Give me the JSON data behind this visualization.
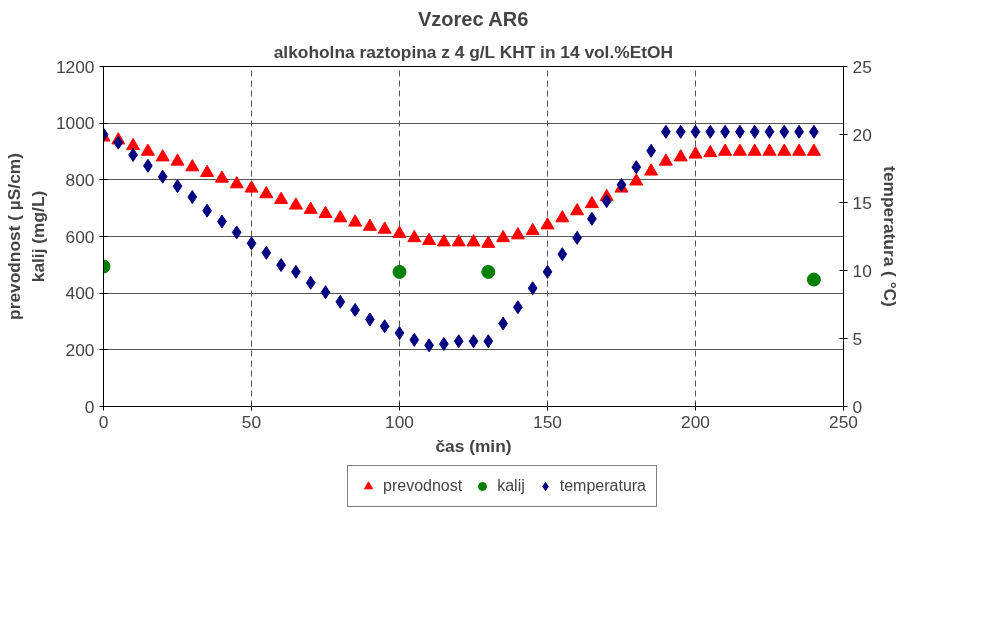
{
  "chart_data": {
    "type": "scatter",
    "title": "Vzorec AR6",
    "subtitle": "alkoholna raztopina z 4 g/L KHT in 14 vol.%EtOH",
    "xlabel": "čas (min)",
    "ylabel": "prevodnost ( µS/cm)\nkalij (mg/L)",
    "y2label": "temperatura ( °C)",
    "xlim": [
      0,
      250
    ],
    "xticks": [
      0,
      50,
      100,
      150,
      200,
      250
    ],
    "ylim": [
      0,
      1200
    ],
    "yticks": [
      0,
      200,
      400,
      600,
      800,
      1000,
      1200
    ],
    "y2lim": [
      0,
      25
    ],
    "y2ticks": [
      0,
      5,
      10,
      15,
      20,
      25
    ],
    "grid": true,
    "legend": "bottom",
    "series": [
      {
        "name": "prevodnost",
        "color": "#ff0000",
        "marker": "triangle",
        "x": [
          0,
          5,
          10,
          15,
          20,
          25,
          30,
          35,
          40,
          45,
          50,
          55,
          60,
          65,
          70,
          75,
          80,
          85,
          90,
          95,
          100,
          105,
          110,
          115,
          120,
          125,
          130,
          135,
          140,
          145,
          150,
          155,
          160,
          165,
          170,
          175,
          180,
          185,
          190,
          195,
          200,
          205,
          210,
          215,
          220,
          225,
          230,
          235,
          240
        ],
        "values": [
          950,
          940,
          920,
          900,
          880,
          865,
          845,
          825,
          805,
          785,
          770,
          750,
          730,
          710,
          695,
          680,
          665,
          650,
          635,
          625,
          610,
          595,
          585,
          580,
          580,
          580,
          575,
          595,
          605,
          620,
          640,
          665,
          690,
          715,
          740,
          770,
          795,
          830,
          865,
          880,
          890,
          895,
          900,
          900,
          900,
          900,
          900,
          900,
          900
        ]
      },
      {
        "name": "kalij",
        "color": "#008000",
        "marker": "circle",
        "x": [
          0,
          100,
          130,
          240
        ],
        "values": [
          494,
          475,
          475,
          448
        ]
      },
      {
        "name": "temperatura",
        "color": "#000080",
        "marker": "diamond",
        "axis": "y2",
        "x": [
          0,
          5,
          10,
          15,
          20,
          25,
          30,
          35,
          40,
          45,
          50,
          55,
          60,
          65,
          70,
          75,
          80,
          85,
          90,
          95,
          100,
          105,
          110,
          115,
          120,
          125,
          130,
          135,
          140,
          145,
          150,
          155,
          160,
          165,
          170,
          175,
          180,
          185,
          190,
          195,
          200,
          205,
          210,
          215,
          220,
          225,
          230,
          235,
          240
        ],
        "values": [
          20.0,
          19.4,
          18.5,
          17.7,
          16.9,
          16.2,
          15.4,
          14.4,
          13.6,
          12.8,
          12.0,
          11.3,
          10.4,
          9.9,
          9.1,
          8.4,
          7.7,
          7.1,
          6.4,
          5.9,
          5.4,
          4.9,
          4.5,
          4.6,
          4.8,
          4.8,
          4.8,
          6.1,
          7.3,
          8.7,
          9.9,
          11.2,
          12.4,
          13.8,
          15.1,
          16.3,
          17.6,
          18.8,
          20.2,
          20.2,
          20.2,
          20.2,
          20.2,
          20.2,
          20.2,
          20.2,
          20.2,
          20.2,
          20.2
        ]
      }
    ]
  }
}
